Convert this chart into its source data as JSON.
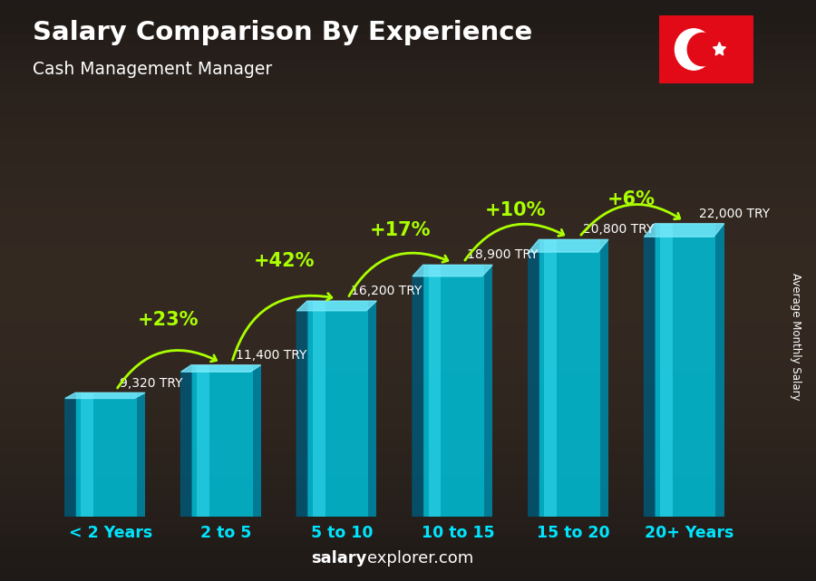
{
  "title": "Salary Comparison By Experience",
  "subtitle": "Cash Management Manager",
  "categories": [
    "< 2 Years",
    "2 to 5",
    "5 to 10",
    "10 to 15",
    "15 to 20",
    "20+ Years"
  ],
  "values": [
    9320,
    11400,
    16200,
    18900,
    20800,
    22000
  ],
  "salary_labels": [
    "9,320 TRY",
    "11,400 TRY",
    "16,200 TRY",
    "18,900 TRY",
    "20,800 TRY",
    "22,000 TRY"
  ],
  "pct_changes": [
    "+23%",
    "+42%",
    "+17%",
    "+10%",
    "+6%"
  ],
  "bar_color_main": "#00bcd4",
  "bar_color_dark": "#006080",
  "bar_color_light": "#80dfff",
  "bg_color": "#1a1a2e",
  "title_color": "#ffffff",
  "subtitle_color": "#ffffff",
  "salary_label_color": "#ffffff",
  "pct_color": "#aaff00",
  "xlabel_color": "#00e5ff",
  "footer_bold": "salary",
  "footer_normal": "explorer.com",
  "ylabel_text": "Average Monthly Salary",
  "ymax": 27000,
  "bar_width": 0.6,
  "figsize": [
    9.0,
    6.41
  ],
  "dpi": 100
}
